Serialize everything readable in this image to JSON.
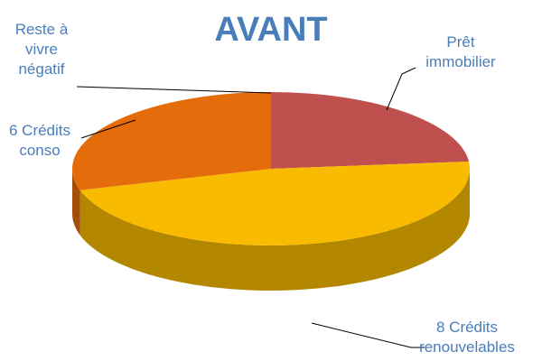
{
  "chart_data": {
    "type": "pie",
    "title": "AVANT",
    "categories": [
      "Prêt immobilier",
      "8 Crédits renouvelables",
      "6 Crédits conso",
      "Reste à vivre négatif"
    ],
    "values": [
      23.5,
      47,
      29.5,
      0
    ],
    "colors": [
      "#c0504d",
      "#f9bb00",
      "#e46c0a",
      "#4f81bd"
    ]
  }
}
